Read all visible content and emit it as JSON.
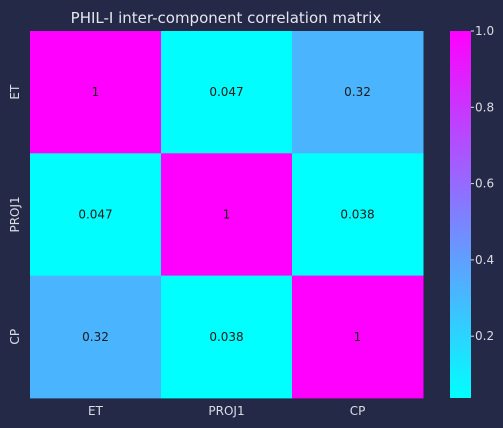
{
  "chart_data": {
    "type": "heatmap",
    "title": "PHIL-I inter-component correlation matrix",
    "xlabel": "",
    "ylabel": "",
    "x_categories": [
      "ET",
      "PROJ1",
      "CP"
    ],
    "y_categories": [
      "ET",
      "PROJ1",
      "CP"
    ],
    "values": [
      [
        1.0,
        0.047,
        0.32
      ],
      [
        0.047,
        1.0,
        0.038
      ],
      [
        0.32,
        0.038,
        1.0
      ]
    ],
    "annotations": [
      [
        "1",
        "0.047",
        "0.32"
      ],
      [
        "0.047",
        "1",
        "0.038"
      ],
      [
        "0.32",
        "0.038",
        "1"
      ]
    ],
    "colormap": "cool",
    "colormap_low": "#00ffff",
    "colormap_high": "#ff00ff",
    "vmin": 0.038,
    "vmax": 1.0,
    "colorbar": {
      "ticks": [
        0.2,
        0.4,
        0.6,
        0.8,
        1.0
      ],
      "tick_labels": [
        "0.2",
        "0.4",
        "0.6",
        "0.8",
        "1.0"
      ]
    },
    "background_color": "#232946"
  }
}
